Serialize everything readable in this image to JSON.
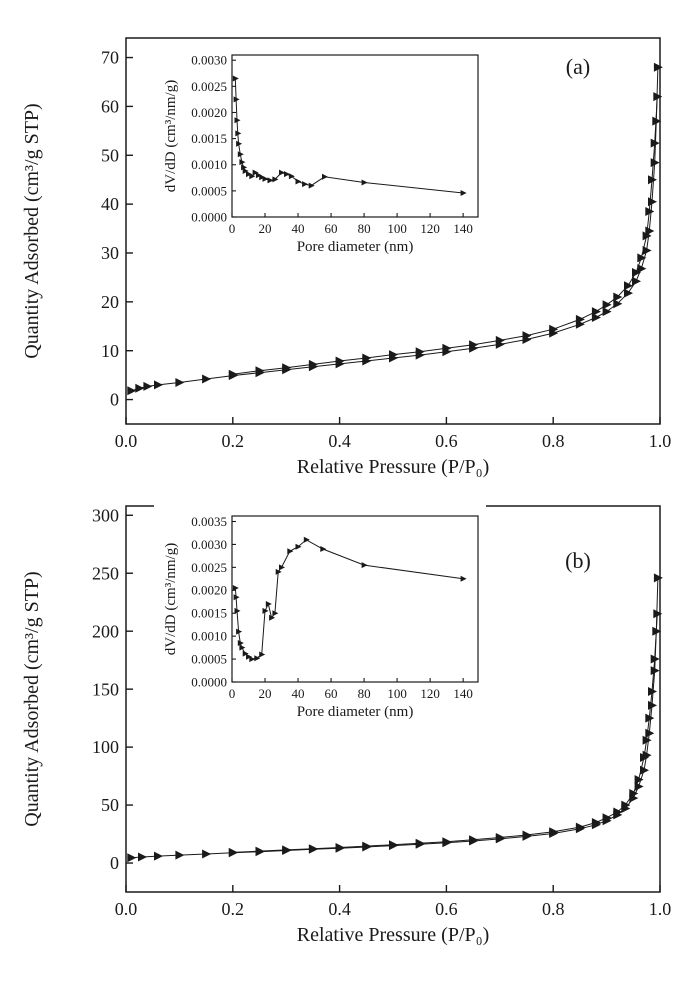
{
  "figure": {
    "foreground_color": "#1a1a1a",
    "background_color": "#ffffff",
    "marker": "right-triangle"
  },
  "chart_data": [
    {
      "id": "panel-a",
      "type": "line",
      "panel_label": "(a)",
      "xlabel": "Relative Pressure (P/P₀)",
      "ylabel": "Quantity Adsorbed (cm³/g STP)",
      "xlim": [
        0.0,
        1.0
      ],
      "ylim": [
        0,
        70
      ],
      "xlim_draw": [
        0.0,
        1.0
      ],
      "ylim_draw": [
        -5,
        74
      ],
      "grid": false,
      "xticks": [
        0.0,
        0.2,
        0.4,
        0.6,
        0.8,
        1.0
      ],
      "xtick_labels": [
        "0.0",
        "0.2",
        "0.4",
        "0.6",
        "0.8",
        "1.0"
      ],
      "yticks": [
        0,
        10,
        20,
        30,
        40,
        50,
        60,
        70
      ],
      "ytick_labels": [
        "0",
        "10",
        "20",
        "30",
        "40",
        "50",
        "60",
        "70"
      ],
      "series": [
        {
          "name": "adsorption",
          "points": [
            [
              0.01,
              1.8
            ],
            [
              0.025,
              2.3
            ],
            [
              0.04,
              2.7
            ],
            [
              0.06,
              3.0
            ],
            [
              0.1,
              3.5
            ],
            [
              0.15,
              4.2
            ],
            [
              0.2,
              4.9
            ],
            [
              0.25,
              5.5
            ],
            [
              0.3,
              6.1
            ],
            [
              0.35,
              6.7
            ],
            [
              0.4,
              7.3
            ],
            [
              0.45,
              7.9
            ],
            [
              0.5,
              8.5
            ],
            [
              0.55,
              9.1
            ],
            [
              0.6,
              9.8
            ],
            [
              0.65,
              10.5
            ],
            [
              0.7,
              11.3
            ],
            [
              0.75,
              12.3
            ],
            [
              0.8,
              13.6
            ],
            [
              0.85,
              15.4
            ],
            [
              0.88,
              16.8
            ],
            [
              0.9,
              18.0
            ],
            [
              0.92,
              19.6
            ],
            [
              0.94,
              21.8
            ],
            [
              0.955,
              24.2
            ],
            [
              0.965,
              26.8
            ],
            [
              0.975,
              30.5
            ],
            [
              0.98,
              34.5
            ],
            [
              0.985,
              40.5
            ],
            [
              0.99,
              48.5
            ],
            [
              0.993,
              57.0
            ],
            [
              0.996,
              68.0
            ]
          ]
        },
        {
          "name": "desorption",
          "points": [
            [
              0.995,
              62.0
            ],
            [
              0.99,
              52.5
            ],
            [
              0.985,
              45.0
            ],
            [
              0.98,
              38.5
            ],
            [
              0.975,
              33.5
            ],
            [
              0.965,
              29.0
            ],
            [
              0.955,
              26.0
            ],
            [
              0.94,
              23.3
            ],
            [
              0.92,
              21.0
            ],
            [
              0.9,
              19.4
            ],
            [
              0.88,
              18.0
            ],
            [
              0.85,
              16.4
            ],
            [
              0.8,
              14.4
            ],
            [
              0.75,
              13.1
            ],
            [
              0.7,
              12.1
            ],
            [
              0.65,
              11.2
            ],
            [
              0.6,
              10.5
            ],
            [
              0.55,
              9.8
            ],
            [
              0.5,
              9.2
            ],
            [
              0.45,
              8.5
            ],
            [
              0.4,
              7.9
            ],
            [
              0.35,
              7.2
            ],
            [
              0.3,
              6.5
            ],
            [
              0.25,
              5.9
            ],
            [
              0.2,
              5.2
            ]
          ]
        }
      ],
      "inset": {
        "type": "line",
        "xlabel": "Pore diameter (nm)",
        "ylabel": "dV/dD (cm³/nm/g)",
        "xlim": [
          0,
          140
        ],
        "ylim": [
          0.0,
          0.003
        ],
        "xlim_draw": [
          0,
          149
        ],
        "ylim_draw": [
          0,
          0.0031
        ],
        "grid": false,
        "xticks": [
          0,
          20,
          40,
          60,
          80,
          100,
          120,
          140
        ],
        "xtick_labels": [
          "0",
          "20",
          "40",
          "60",
          "80",
          "100",
          "120",
          "140"
        ],
        "yticks": [
          0.0,
          0.0005,
          0.001,
          0.0015,
          0.002,
          0.0025,
          0.003
        ],
        "ytick_labels": [
          "0.0000",
          "0.0005",
          "0.0010",
          "0.0015",
          "0.0020",
          "0.0025",
          "0.0030"
        ],
        "series": [
          {
            "name": "pore_size_distribution",
            "points": [
              [
                2,
                0.00265
              ],
              [
                2.5,
                0.00225
              ],
              [
                3,
                0.00185
              ],
              [
                3.5,
                0.0016
              ],
              [
                4,
                0.0014
              ],
              [
                5,
                0.0012
              ],
              [
                6,
                0.00105
              ],
              [
                7,
                0.00095
              ],
              [
                8,
                0.00088
              ],
              [
                10,
                0.00082
              ],
              [
                12,
                0.00078
              ],
              [
                14,
                0.00085
              ],
              [
                16,
                0.0008
              ],
              [
                18,
                0.00076
              ],
              [
                20,
                0.00073
              ],
              [
                23,
                0.0007
              ],
              [
                26,
                0.00072
              ],
              [
                30,
                0.00085
              ],
              [
                33,
                0.00082
              ],
              [
                36,
                0.00078
              ],
              [
                40,
                0.00068
              ],
              [
                44,
                0.00063
              ],
              [
                48,
                0.0006
              ],
              [
                56,
                0.00077
              ],
              [
                80,
                0.00066
              ],
              [
                140,
                0.00046
              ]
            ]
          }
        ]
      }
    },
    {
      "id": "panel-b",
      "type": "line",
      "panel_label": "(b)",
      "xlabel": "Relative Pressure (P/P₀)",
      "ylabel": "Quantity Adsorbed (cm³/g STP)",
      "xlim": [
        0.0,
        1.0
      ],
      "ylim": [
        0,
        300
      ],
      "xlim_draw": [
        0.0,
        1.0
      ],
      "ylim_draw": [
        -25,
        308
      ],
      "grid": false,
      "xticks": [
        0.0,
        0.2,
        0.4,
        0.6,
        0.8,
        1.0
      ],
      "xtick_labels": [
        "0.0",
        "0.2",
        "0.4",
        "0.6",
        "0.8",
        "1.0"
      ],
      "yticks": [
        0,
        50,
        100,
        150,
        200,
        250,
        300
      ],
      "ytick_labels": [
        "0",
        "50",
        "100",
        "150",
        "200",
        "250",
        "300"
      ],
      "series": [
        {
          "name": "adsorption",
          "points": [
            [
              0.01,
              4.5
            ],
            [
              0.03,
              5.2
            ],
            [
              0.06,
              6.0
            ],
            [
              0.1,
              6.8
            ],
            [
              0.15,
              7.8
            ],
            [
              0.2,
              8.8
            ],
            [
              0.25,
              9.8
            ],
            [
              0.3,
              10.8
            ],
            [
              0.35,
              11.8
            ],
            [
              0.4,
              12.8
            ],
            [
              0.45,
              13.8
            ],
            [
              0.5,
              15.0
            ],
            [
              0.55,
              16.2
            ],
            [
              0.6,
              17.5
            ],
            [
              0.65,
              19.0
            ],
            [
              0.7,
              20.8
            ],
            [
              0.75,
              23.0
            ],
            [
              0.8,
              25.5
            ],
            [
              0.85,
              29.5
            ],
            [
              0.88,
              33.0
            ],
            [
              0.9,
              36.5
            ],
            [
              0.92,
              41.5
            ],
            [
              0.935,
              47.0
            ],
            [
              0.95,
              56.0
            ],
            [
              0.96,
              66.0
            ],
            [
              0.97,
              80.0
            ],
            [
              0.975,
              93.0
            ],
            [
              0.98,
              112.0
            ],
            [
              0.985,
              136.0
            ],
            [
              0.99,
              166.0
            ],
            [
              0.993,
              200.0
            ],
            [
              0.996,
              246.0
            ]
          ]
        },
        {
          "name": "desorption",
          "points": [
            [
              0.995,
              215.0
            ],
            [
              0.99,
              176.0
            ],
            [
              0.985,
              148.0
            ],
            [
              0.98,
              125.0
            ],
            [
              0.975,
              106.0
            ],
            [
              0.97,
              91.0
            ],
            [
              0.96,
              72.0
            ],
            [
              0.95,
              60.0
            ],
            [
              0.935,
              50.0
            ],
            [
              0.92,
              44.0
            ],
            [
              0.9,
              39.0
            ],
            [
              0.88,
              35.0
            ],
            [
              0.85,
              31.0
            ],
            [
              0.8,
              27.0
            ],
            [
              0.75,
              24.2
            ],
            [
              0.7,
              22.0
            ],
            [
              0.65,
              20.0
            ],
            [
              0.6,
              18.4
            ],
            [
              0.55,
              17.0
            ],
            [
              0.5,
              15.8
            ],
            [
              0.45,
              14.6
            ],
            [
              0.4,
              13.4
            ],
            [
              0.35,
              12.3
            ],
            [
              0.3,
              11.3
            ],
            [
              0.25,
              10.3
            ],
            [
              0.2,
              9.2
            ]
          ]
        }
      ],
      "inset": {
        "type": "line",
        "xlabel": "Pore diameter (nm)",
        "ylabel": "dV/dD (cm³/nm/g)",
        "xlim": [
          0,
          140
        ],
        "ylim": [
          0.0,
          0.0035
        ],
        "xlim_draw": [
          0,
          149
        ],
        "ylim_draw": [
          0,
          0.00362
        ],
        "grid": false,
        "xticks": [
          0,
          20,
          40,
          60,
          80,
          100,
          120,
          140
        ],
        "xtick_labels": [
          "0",
          "20",
          "40",
          "60",
          "80",
          "100",
          "120",
          "140"
        ],
        "yticks": [
          0.0,
          0.0005,
          0.001,
          0.0015,
          0.002,
          0.0025,
          0.003,
          0.0035
        ],
        "ytick_labels": [
          "0.0000",
          "0.0005",
          "0.0010",
          "0.0015",
          "0.0020",
          "0.0025",
          "0.0030",
          "0.0035"
        ],
        "series": [
          {
            "name": "pore_size_distribution",
            "points": [
              [
                2,
                0.00205
              ],
              [
                2.5,
                0.00185
              ],
              [
                3,
                0.00155
              ],
              [
                4,
                0.0011
              ],
              [
                5,
                0.00085
              ],
              [
                6,
                0.00075
              ],
              [
                8,
                0.00062
              ],
              [
                10,
                0.00055
              ],
              [
                12,
                0.0005
              ],
              [
                15,
                0.00052
              ],
              [
                18,
                0.0006
              ],
              [
                20,
                0.00155
              ],
              [
                22,
                0.0017
              ],
              [
                24,
                0.0014
              ],
              [
                26,
                0.0015
              ],
              [
                28,
                0.0024
              ],
              [
                30,
                0.0025
              ],
              [
                35,
                0.00285
              ],
              [
                40,
                0.00295
              ],
              [
                45,
                0.0031
              ],
              [
                55,
                0.0029
              ],
              [
                80,
                0.00255
              ],
              [
                140,
                0.00225
              ]
            ]
          }
        ]
      }
    }
  ]
}
